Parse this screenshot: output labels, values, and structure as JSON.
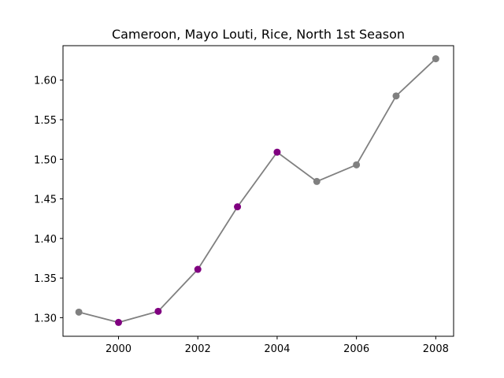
{
  "chart_data": {
    "type": "line",
    "title": "Cameroon, Mayo Louti, Rice, North 1st Season",
    "xlabel": "",
    "ylabel": "",
    "xlim": [
      1998.6,
      2008.45
    ],
    "ylim": [
      1.2765,
      1.6435
    ],
    "xticks": [
      2000,
      2002,
      2004,
      2006,
      2008
    ],
    "yticks": [
      1.3,
      1.35,
      1.4,
      1.45,
      1.5,
      1.55,
      1.6
    ],
    "line_color": "#808080",
    "series": [
      {
        "x": [
          1999,
          2000,
          2001,
          2002,
          2003,
          2004,
          2005,
          2006,
          2007,
          2008
        ],
        "y": [
          1.307,
          1.294,
          1.308,
          1.361,
          1.44,
          1.509,
          1.472,
          1.493,
          1.58,
          1.627
        ],
        "point_colors": [
          "#808080",
          "#800080",
          "#800080",
          "#800080",
          "#800080",
          "#800080",
          "#808080",
          "#808080",
          "#808080",
          "#808080"
        ]
      }
    ]
  }
}
